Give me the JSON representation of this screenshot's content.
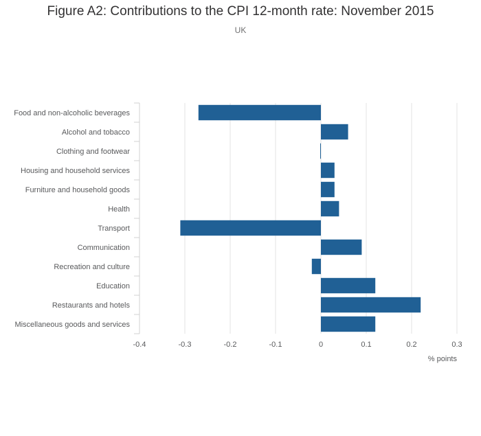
{
  "chart_data": {
    "type": "bar",
    "orientation": "horizontal",
    "title": "Figure A2: Contributions to the CPI 12-month rate: November 2015",
    "subtitle": "UK",
    "xlabel": "% points",
    "ylabel": "",
    "xlim": [
      -0.4,
      0.3
    ],
    "xticks": [
      -0.4,
      -0.3,
      -0.2,
      -0.1,
      0,
      0.1,
      0.2,
      0.3
    ],
    "xtick_labels": [
      "-0.4",
      "-0.3",
      "-0.2",
      "-0.1",
      "0",
      "0.1",
      "0.2",
      "0.3"
    ],
    "grid": true,
    "bar_color": "#206095",
    "categories": [
      "Food and non-alcoholic beverages",
      "Alcohol and tobacco",
      "Clothing and footwear",
      "Housing and household services",
      "Furniture and household goods",
      "Health",
      "Transport",
      "Communication",
      "Recreation and culture",
      "Education",
      "Restaurants and hotels",
      "Miscellaneous goods and services"
    ],
    "values": [
      -0.27,
      0.06,
      0.0,
      0.03,
      0.03,
      0.04,
      -0.31,
      0.09,
      -0.02,
      0.12,
      0.22,
      0.12
    ]
  }
}
